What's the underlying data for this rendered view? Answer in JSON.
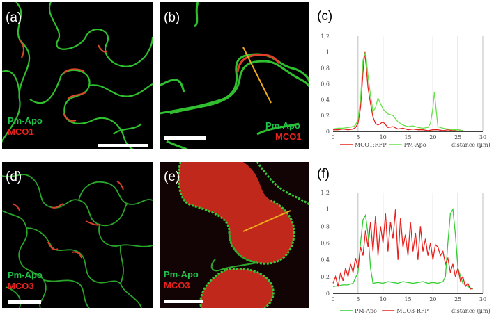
{
  "panels": {
    "a": {
      "label": "(a)",
      "marker1": "Pm-Apo",
      "marker2": "MCO1"
    },
    "b": {
      "label": "(b)",
      "marker1": "Pm-Apo",
      "marker2": "MCO1"
    },
    "c": {
      "label": "(c)"
    },
    "d": {
      "label": "(d)",
      "marker1": "Pm-Apo",
      "marker2": "MCO3"
    },
    "e": {
      "label": "(e)",
      "marker1": "Pm-Apo",
      "marker2": "MCO3"
    },
    "f": {
      "label": "(f)"
    }
  },
  "colors": {
    "green": "#33cc33",
    "red": "#e8231f",
    "line": "#f0a81c",
    "grid": "#bfbfbf"
  },
  "chart_data": [
    {
      "type": "line",
      "panel": "(c)",
      "xlabel": "distance (µm)",
      "xlim": [
        0,
        30
      ],
      "ylim": [
        0,
        1.2
      ],
      "xticks": [
        "0",
        "5",
        "10",
        "15",
        "20",
        "25",
        "30"
      ],
      "yticks": [
        "0",
        "0,2",
        "0,4",
        "0,6",
        "0,8",
        "1",
        "1,2"
      ],
      "legend": [
        "MCO1:RFP",
        "PM-Apo"
      ],
      "series": [
        {
          "name": "MCO1:RFP",
          "color": "#e8231f",
          "x": [
            0,
            1,
            2,
            3,
            4,
            4.5,
            5,
            5.5,
            6,
            6.3,
            6.6,
            7,
            7.5,
            8,
            8.5,
            9,
            10,
            11,
            12,
            13,
            14,
            15,
            16,
            17,
            18,
            19,
            20,
            21,
            22,
            23,
            24,
            25,
            26
          ],
          "y": [
            0.02,
            0.02,
            0.03,
            0.02,
            0.03,
            0.05,
            0.1,
            0.3,
            0.75,
            1.0,
            0.85,
            0.55,
            0.35,
            0.18,
            0.1,
            0.08,
            0.12,
            0.05,
            0.06,
            0.03,
            0.04,
            0.02,
            0.03,
            0.02,
            0.02,
            0.01,
            0.02,
            0.02,
            0.01,
            0.02,
            0.01,
            0.02,
            0.01
          ]
        },
        {
          "name": "PM-Apo",
          "color": "#66e24a",
          "x": [
            0,
            1,
            2,
            3,
            4,
            4.5,
            5,
            5.5,
            6,
            6.5,
            7,
            7.5,
            8,
            8.5,
            9,
            9.5,
            10,
            11,
            12,
            13,
            14,
            15,
            16,
            17,
            18,
            19,
            19.5,
            20,
            20.3,
            20.6,
            21,
            22,
            23,
            24,
            25,
            26
          ],
          "y": [
            0.03,
            0.04,
            0.04,
            0.05,
            0.06,
            0.08,
            0.15,
            0.4,
            0.9,
            1.0,
            0.7,
            0.45,
            0.25,
            0.3,
            0.42,
            0.35,
            0.28,
            0.22,
            0.2,
            0.12,
            0.08,
            0.06,
            0.07,
            0.05,
            0.04,
            0.05,
            0.1,
            0.3,
            0.5,
            0.3,
            0.06,
            0.04,
            0.03,
            0.02,
            0.02,
            0.01
          ]
        }
      ]
    },
    {
      "type": "line",
      "panel": "(f)",
      "xlabel": "distance (µm)",
      "xlim": [
        0,
        30
      ],
      "ylim": [
        0,
        1.2
      ],
      "xticks": [
        "0",
        "5",
        "10",
        "15",
        "20",
        "25",
        "30"
      ],
      "yticks": [
        "0",
        "0,2",
        "0,4",
        "0,6",
        "0,8",
        "1",
        "1,2"
      ],
      "legend": [
        "PM-Apo",
        "MCO3-RFP"
      ],
      "series": [
        {
          "name": "PM-Apo",
          "color": "#33cc33",
          "x": [
            0,
            1,
            2,
            3,
            4,
            5,
            5.5,
            6,
            6.5,
            7,
            7.5,
            8,
            9,
            10,
            11,
            12,
            13,
            14,
            15,
            16,
            17,
            18,
            19,
            20,
            21,
            22,
            22.5,
            23,
            23.5,
            24,
            24.5,
            25,
            26,
            27,
            28
          ],
          "y": [
            0.08,
            0.09,
            0.1,
            0.1,
            0.12,
            0.25,
            0.6,
            0.88,
            0.93,
            0.7,
            0.3,
            0.12,
            0.13,
            0.12,
            0.14,
            0.13,
            0.12,
            0.14,
            0.13,
            0.12,
            0.13,
            0.14,
            0.12,
            0.13,
            0.12,
            0.14,
            0.2,
            0.6,
            0.95,
            1.0,
            0.7,
            0.3,
            0.12,
            0.08,
            0.05
          ]
        },
        {
          "name": "MCO3-RFP",
          "color": "#e8231f",
          "x": [
            0,
            0.5,
            1,
            1.5,
            2,
            2.5,
            3,
            3.5,
            4,
            4.5,
            5,
            5.5,
            6,
            6.5,
            7,
            7.5,
            8,
            8.5,
            9,
            9.5,
            10,
            10.5,
            11,
            11.5,
            12,
            12.5,
            13,
            13.5,
            14,
            14.5,
            15,
            15.5,
            16,
            16.5,
            17,
            17.5,
            18,
            18.5,
            19,
            19.5,
            20,
            20.5,
            21,
            21.5,
            22,
            22.5,
            23,
            23.5,
            24,
            24.5,
            25,
            25.5,
            26,
            26.5,
            27,
            27.5,
            28
          ],
          "y": [
            0.12,
            0.2,
            0.08,
            0.25,
            0.15,
            0.3,
            0.2,
            0.35,
            0.25,
            0.42,
            0.3,
            0.55,
            0.45,
            0.75,
            0.55,
            0.85,
            0.5,
            0.92,
            0.45,
            0.8,
            0.6,
            0.95,
            0.5,
            0.85,
            0.65,
            1.0,
            0.4,
            0.9,
            0.55,
            0.7,
            0.45,
            0.85,
            0.5,
            0.72,
            0.4,
            0.8,
            0.5,
            0.65,
            0.45,
            0.6,
            0.4,
            0.58,
            0.55,
            0.45,
            0.5,
            0.35,
            0.42,
            0.25,
            0.35,
            0.2,
            0.3,
            0.15,
            0.2,
            0.08,
            0.12,
            0.05,
            0.06
          ]
        }
      ]
    }
  ]
}
